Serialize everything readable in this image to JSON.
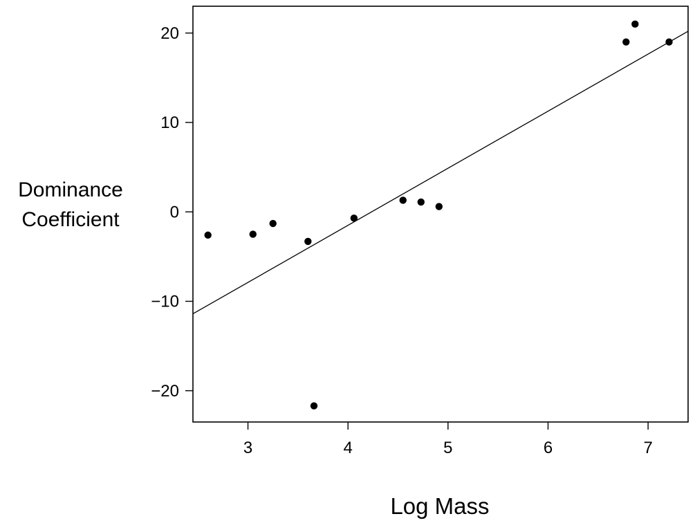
{
  "chart_data": {
    "type": "scatter",
    "title": "",
    "xlabel": "Log Mass",
    "ylabel_lines": [
      "Dominance",
      "Coefficient"
    ],
    "xlim": [
      2.45,
      7.4
    ],
    "ylim": [
      -23.5,
      23
    ],
    "x_ticks": [
      3,
      4,
      5,
      6,
      7
    ],
    "y_ticks": [
      -20,
      -10,
      0,
      10,
      20
    ],
    "x_tick_labels": [
      "3",
      "4",
      "5",
      "6",
      "7"
    ],
    "y_tick_labels": [
      "−20",
      "−10",
      "0",
      "10",
      "20"
    ],
    "grid": false,
    "legend": "none",
    "points": [
      {
        "x": 2.6,
        "y": -2.6
      },
      {
        "x": 3.05,
        "y": -2.5
      },
      {
        "x": 3.25,
        "y": -1.3
      },
      {
        "x": 3.6,
        "y": -3.3
      },
      {
        "x": 3.66,
        "y": -21.7
      },
      {
        "x": 4.06,
        "y": -0.7
      },
      {
        "x": 4.55,
        "y": 1.3
      },
      {
        "x": 4.73,
        "y": 1.1
      },
      {
        "x": 4.91,
        "y": 0.6
      },
      {
        "x": 6.78,
        "y": 19.0
      },
      {
        "x": 6.87,
        "y": 21.0
      },
      {
        "x": 7.21,
        "y": 19.0
      }
    ],
    "fit_line": {
      "x0": 2.45,
      "y0": -11.4,
      "x1": 7.4,
      "y1": 20.2
    },
    "colors": {
      "points": "#000000",
      "line": "#000000",
      "axes": "#000000"
    }
  }
}
